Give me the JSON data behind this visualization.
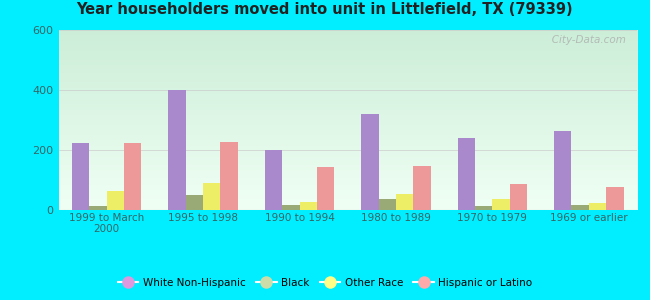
{
  "title": "Year householders moved into unit in Littlefield, TX (79339)",
  "categories": [
    "1999 to March\n2000",
    "1995 to 1998",
    "1990 to 1994",
    "1980 to 1989",
    "1970 to 1979",
    "1969 or earlier"
  ],
  "series": {
    "White Non-Hispanic": [
      225,
      400,
      200,
      320,
      240,
      265
    ],
    "Black": [
      12,
      50,
      18,
      38,
      12,
      18
    ],
    "Other Race": [
      65,
      90,
      28,
      52,
      38,
      25
    ],
    "Hispanic or Latino": [
      222,
      228,
      145,
      148,
      88,
      78
    ]
  },
  "colors": {
    "White Non-Hispanic": "#aa88cc",
    "Black": "#99aa77",
    "Other Race": "#eeee66",
    "Hispanic or Latino": "#ee9999"
  },
  "legend_colors": {
    "White Non-Hispanic": "#dd99dd",
    "Black": "#ccddaa",
    "Other Race": "#ffff88",
    "Hispanic or Latino": "#ffaaaa"
  },
  "ylim": [
    0,
    600
  ],
  "yticks": [
    0,
    200,
    400,
    600
  ],
  "outer_bg": "#00eeff",
  "bar_width": 0.18,
  "watermark": "   City-Data.com"
}
